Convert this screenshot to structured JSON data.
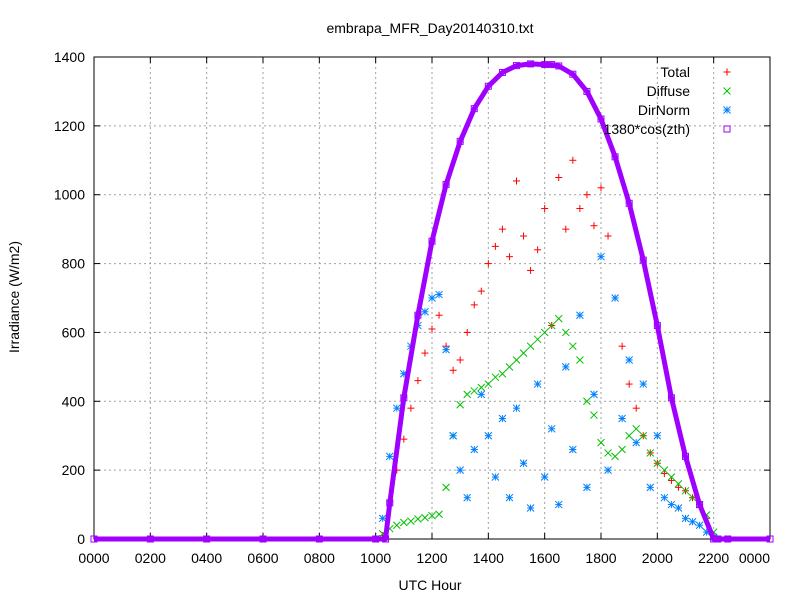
{
  "chart_data": {
    "type": "scatter",
    "title": "embrapa_MFR_Day20140310.txt",
    "xlabel": "UTC Hour",
    "ylabel": "Irradiance (W/m2)",
    "xlim": [
      0,
      24
    ],
    "ylim": [
      0,
      1400
    ],
    "x_tick_labels": [
      "0000",
      "0200",
      "0400",
      "0600",
      "0800",
      "1000",
      "1200",
      "1400",
      "1600",
      "1800",
      "2000",
      "2200",
      "0000"
    ],
    "y_tick_labels": [
      "0",
      "200",
      "400",
      "600",
      "800",
      "1000",
      "1200",
      "1400"
    ],
    "grid": true,
    "legend_position": "top-right",
    "series": [
      {
        "name": "Total",
        "marker": "+",
        "color": "#ff0000",
        "x": [
          10.25,
          10.5,
          10.75,
          11.0,
          11.25,
          11.5,
          11.75,
          12.0,
          12.25,
          12.5,
          12.75,
          13.0,
          13.25,
          13.5,
          13.75,
          14.0,
          14.25,
          14.5,
          14.75,
          15.0,
          15.25,
          15.5,
          15.75,
          16.0,
          16.25,
          16.5,
          16.75,
          17.0,
          17.25,
          17.5,
          17.75,
          18.0,
          18.25,
          18.5,
          18.75,
          19.0,
          19.25,
          19.5,
          19.75,
          20.0,
          20.25,
          20.5,
          20.75,
          21.0,
          21.25,
          21.5,
          21.75,
          22.0
        ],
        "y": [
          10,
          110,
          200,
          290,
          380,
          460,
          540,
          610,
          650,
          560,
          490,
          520,
          600,
          680,
          720,
          800,
          850,
          900,
          820,
          1040,
          880,
          780,
          840,
          960,
          620,
          1050,
          900,
          1100,
          960,
          1000,
          910,
          1020,
          880,
          700,
          560,
          450,
          380,
          300,
          250,
          220,
          190,
          170,
          150,
          140,
          120,
          100,
          60,
          10
        ]
      },
      {
        "name": "Diffuse",
        "marker": "x",
        "color": "#00c000",
        "x": [
          10.25,
          10.5,
          10.75,
          11.0,
          11.25,
          11.5,
          11.75,
          12.0,
          12.25,
          12.5,
          12.75,
          13.0,
          13.25,
          13.5,
          13.75,
          14.0,
          14.25,
          14.5,
          14.75,
          15.0,
          15.25,
          15.5,
          15.75,
          16.0,
          16.25,
          16.5,
          16.75,
          17.0,
          17.25,
          17.5,
          17.75,
          18.0,
          18.25,
          18.5,
          18.75,
          19.0,
          19.25,
          19.5,
          19.75,
          20.0,
          20.25,
          20.5,
          20.75,
          21.0,
          21.25,
          21.5,
          21.75,
          22.0
        ],
        "y": [
          15,
          30,
          40,
          48,
          52,
          58,
          62,
          68,
          72,
          150,
          300,
          390,
          420,
          430,
          440,
          450,
          470,
          480,
          500,
          520,
          540,
          560,
          580,
          600,
          620,
          640,
          600,
          560,
          520,
          400,
          360,
          280,
          250,
          240,
          260,
          300,
          320,
          300,
          250,
          220,
          200,
          180,
          160,
          140,
          120,
          100,
          70,
          20
        ]
      },
      {
        "name": "DirNorm",
        "marker": "*",
        "color": "#0080ff",
        "x": [
          10.25,
          10.5,
          10.75,
          11.0,
          11.25,
          11.5,
          11.75,
          12.0,
          12.25,
          12.5,
          12.75,
          13.0,
          13.25,
          13.5,
          13.75,
          14.0,
          14.25,
          14.5,
          14.75,
          15.0,
          15.25,
          15.5,
          15.75,
          16.0,
          16.25,
          16.5,
          16.75,
          17.0,
          17.25,
          17.5,
          17.75,
          18.0,
          18.25,
          18.5,
          18.75,
          19.0,
          19.25,
          19.5,
          19.75,
          20.0,
          20.25,
          20.5,
          20.75,
          21.0,
          21.25,
          21.5,
          21.75,
          22.0
        ],
        "y": [
          60,
          240,
          380,
          480,
          560,
          620,
          660,
          700,
          710,
          550,
          300,
          200,
          120,
          260,
          420,
          300,
          180,
          350,
          120,
          380,
          220,
          90,
          450,
          180,
          320,
          100,
          500,
          260,
          650,
          150,
          420,
          820,
          200,
          700,
          350,
          520,
          280,
          450,
          150,
          300,
          120,
          100,
          90,
          60,
          50,
          40,
          20,
          5
        ]
      },
      {
        "name": "1380*cos(zth)",
        "marker": "square",
        "color": "#a000ff",
        "x": [
          0,
          2,
          4,
          6,
          8,
          10,
          10.35,
          10.5,
          11.0,
          11.5,
          12.0,
          12.5,
          13.0,
          13.5,
          14.0,
          14.5,
          15.0,
          15.5,
          16.0,
          16.25,
          16.5,
          17.0,
          17.5,
          18.0,
          18.5,
          19.0,
          19.5,
          20.0,
          20.5,
          21.0,
          21.5,
          22.0,
          22.15,
          22.5,
          24
        ],
        "y": [
          0,
          0,
          0,
          0,
          0,
          0,
          0,
          105,
          410,
          650,
          865,
          1030,
          1155,
          1250,
          1315,
          1355,
          1375,
          1380,
          1378,
          1378,
          1374,
          1350,
          1300,
          1220,
          1110,
          975,
          810,
          620,
          410,
          240,
          100,
          0,
          0,
          0,
          0
        ]
      }
    ]
  }
}
